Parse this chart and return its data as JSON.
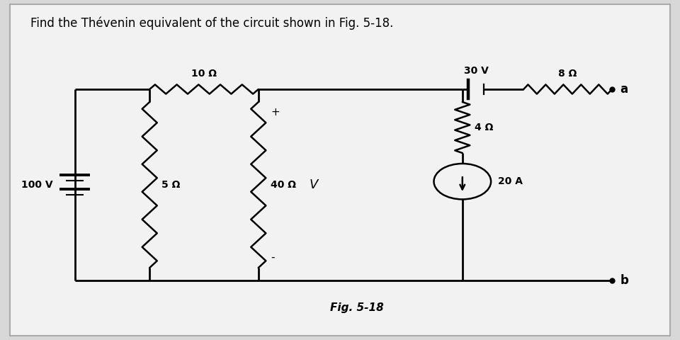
{
  "title": "Find the Thévenin equivalent of the circuit shown in Fig. 5-18.",
  "fig_label": "Fig. 5-18",
  "bg_color": "#d8d8d8",
  "panel_color": "#f2f2f2",
  "line_color": "#000000",
  "title_fontsize": 12,
  "label_fontsize": 10,
  "R1_label": "10 Ω",
  "R2_label": "5 Ω",
  "R3_label": "40 Ω",
  "R4_label": "4 Ω",
  "R5_label": "8 Ω",
  "V1_label": "100 V",
  "V2_label": "30 V",
  "I1_label": "20 A",
  "V_label": "V",
  "plus": "+",
  "minus": "-",
  "term_a": "a",
  "term_b": "b"
}
